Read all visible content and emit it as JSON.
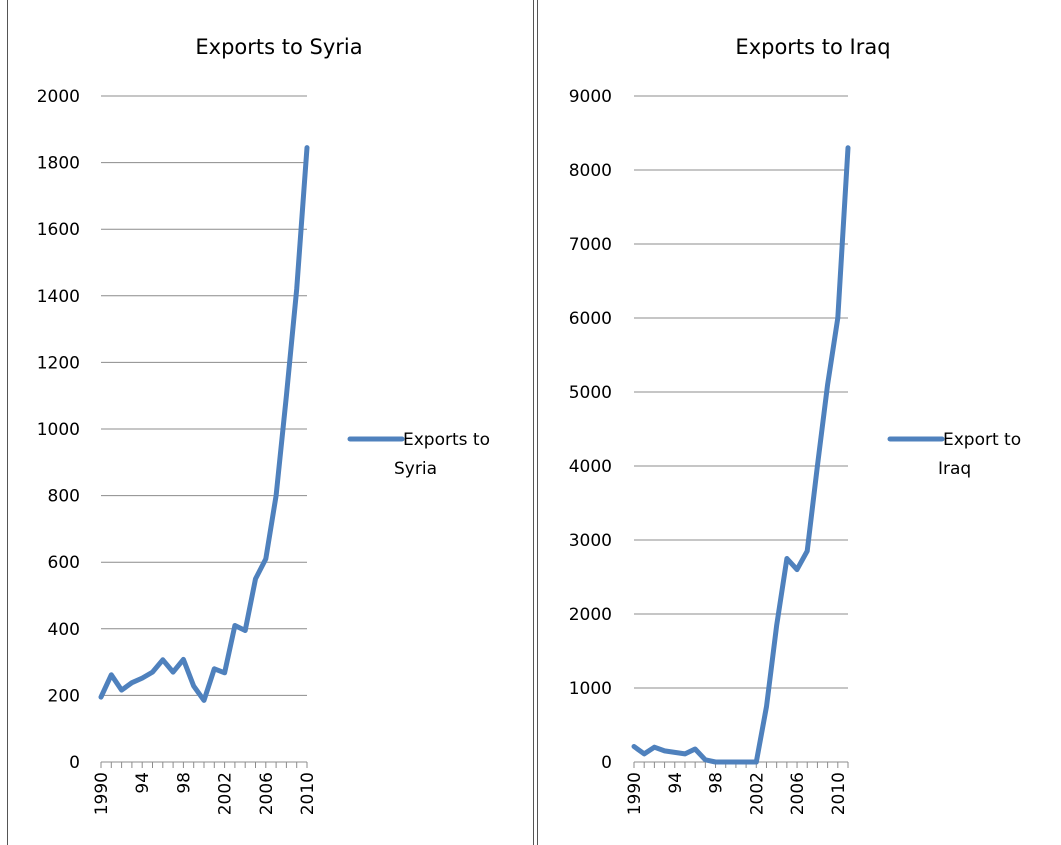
{
  "chart_data": [
    {
      "type": "line",
      "title": "Exports to Syria",
      "xlabel": "",
      "ylabel": "",
      "ylim": [
        0,
        2000
      ],
      "yticks": [
        0,
        200,
        400,
        600,
        800,
        1000,
        1200,
        1400,
        1600,
        1800,
        2000
      ],
      "xlim": [
        1990,
        2010
      ],
      "xticklabels": [
        "1990",
        "94",
        "98",
        "2002",
        "2006",
        "2010"
      ],
      "grid": true,
      "legend_position": "right",
      "series": [
        {
          "name": "Exports to Syria",
          "color": "#4f81bd",
          "x": [
            1990,
            1991,
            1992,
            1993,
            1994,
            1995,
            1996,
            1997,
            1998,
            1999,
            2000,
            2001,
            2002,
            2003,
            2004,
            2005,
            2006,
            2007,
            2008,
            2009,
            2010
          ],
          "y": [
            195,
            262,
            216,
            238,
            252,
            270,
            307,
            270,
            308,
            228,
            185,
            280,
            268,
            410,
            395,
            550,
            610,
            800,
            1100,
            1420,
            1845
          ]
        }
      ]
    },
    {
      "type": "line",
      "title": "Exports to Iraq",
      "xlabel": "",
      "ylabel": "",
      "ylim": [
        0,
        9000
      ],
      "yticks": [
        0,
        1000,
        2000,
        3000,
        4000,
        5000,
        6000,
        7000,
        8000,
        9000
      ],
      "xlim": [
        1990,
        2011
      ],
      "xticklabels": [
        "1990",
        "94",
        "98",
        "2002",
        "2006",
        "2010"
      ],
      "grid": true,
      "legend_position": "right",
      "series": [
        {
          "name": "Export to Iraq",
          "color": "#4f81bd",
          "x": [
            1990,
            1991,
            1992,
            1993,
            1994,
            1995,
            1996,
            1997,
            1998,
            1999,
            2000,
            2001,
            2002,
            2003,
            2004,
            2005,
            2006,
            2007,
            2008,
            2009,
            2010,
            2011
          ],
          "y": [
            210,
            110,
            200,
            150,
            130,
            110,
            175,
            30,
            0,
            0,
            0,
            0,
            0,
            750,
            1850,
            2750,
            2600,
            2850,
            4000,
            5100,
            6000,
            8300
          ]
        }
      ]
    }
  ]
}
